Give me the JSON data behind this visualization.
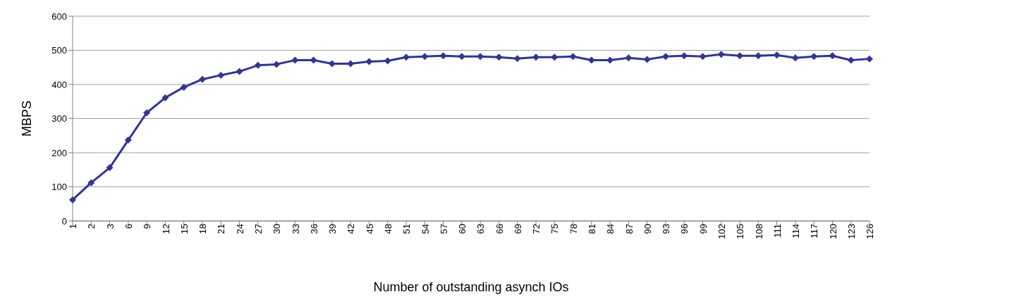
{
  "chart_data": {
    "type": "line",
    "xlabel": "Number of outstanding asynch IOs",
    "ylabel": "MBPS",
    "categories": [
      "1",
      "2",
      "3",
      "6",
      "9",
      "12",
      "15",
      "18",
      "21",
      "24",
      "27",
      "30",
      "33",
      "36",
      "39",
      "42",
      "45",
      "48",
      "51",
      "54",
      "57",
      "60",
      "63",
      "66",
      "69",
      "72",
      "75",
      "78",
      "81",
      "84",
      "87",
      "90",
      "93",
      "96",
      "99",
      "102",
      "105",
      "108",
      "111",
      "114",
      "117",
      "120",
      "123",
      "126"
    ],
    "series": [
      {
        "color": "#333399",
        "values": [
          62,
          112,
          156,
          237,
          317,
          361,
          392,
          415,
          427,
          438,
          456,
          459,
          471,
          471,
          461,
          461,
          467,
          469,
          480,
          482,
          484,
          482,
          482,
          480,
          476,
          480,
          480,
          482,
          471,
          471,
          478,
          473,
          482,
          484,
          482,
          488,
          484,
          484,
          486,
          478,
          482,
          484,
          471,
          475
        ]
      }
    ],
    "ylim": [
      0,
      600
    ],
    "yticks": [
      0,
      100,
      200,
      300,
      400,
      500,
      600
    ],
    "grid": "y",
    "marker": "diamond",
    "line_style": "solid"
  }
}
